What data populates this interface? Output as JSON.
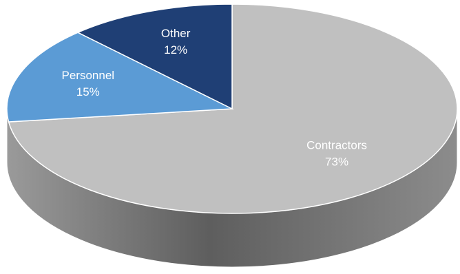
{
  "chart_data": {
    "type": "pie",
    "style": "3d",
    "slices": [
      {
        "label": "Contractors",
        "value": 73,
        "value_label": "73%",
        "color": "#c0c0c0"
      },
      {
        "label": "Personnel",
        "value": 15,
        "value_label": "15%",
        "color": "#5b9bd5"
      },
      {
        "label": "Other",
        "value": 12,
        "value_label": "12%",
        "color": "#1f3f75"
      }
    ],
    "side_color": "#7a7a7a",
    "start": "top",
    "direction": "clockwise",
    "legend": "none"
  }
}
